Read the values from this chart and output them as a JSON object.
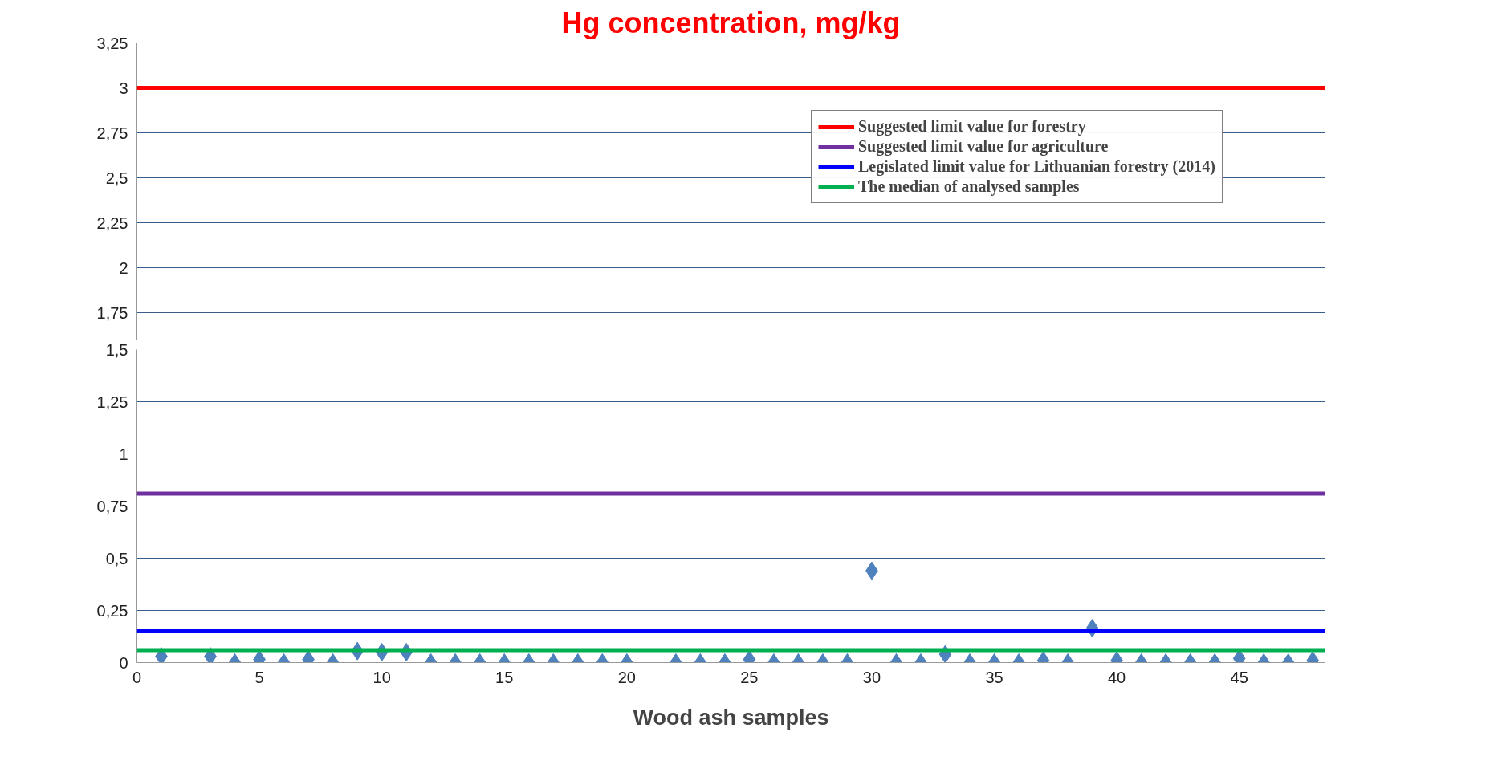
{
  "chart_data": [
    {
      "type": "scatter",
      "title": "Hg concentration, mg/kg",
      "xlim": [
        0,
        48.5
      ],
      "ylim": [
        1.6,
        3.25
      ],
      "yticks": [
        {
          "value": 1.75,
          "label": "1,75"
        },
        2,
        {
          "value": 2.25,
          "label": "2,25"
        },
        {
          "value": 2.5,
          "label": "2,5"
        },
        {
          "value": 2.75,
          "label": "2,75"
        },
        3,
        {
          "value": 3.25,
          "label": "3,25"
        }
      ],
      "tick_labels": "y",
      "grid": "y",
      "legend": "top right",
      "ref_lines": [
        {
          "axis": "y",
          "value": 3,
          "label": "Suggested limit value for forestry",
          "color": "#ff0000"
        }
      ]
    },
    {
      "type": "scatter",
      "xlabel": "Wood ash samples",
      "xlim": [
        0,
        48.5
      ],
      "ylim": [
        0,
        1.5
      ],
      "xticks": [
        0,
        5,
        10,
        15,
        20,
        25,
        30,
        35,
        40,
        45
      ],
      "yticks": [
        0,
        {
          "value": 0.25,
          "label": "0,25"
        },
        {
          "value": 0.5,
          "label": "0,5"
        },
        {
          "value": 0.75,
          "label": "0,75"
        },
        1,
        {
          "value": 1.25,
          "label": "1,25"
        },
        {
          "value": 1.5,
          "label": "1,5"
        }
      ],
      "grid": "y",
      "marker": "diamond",
      "legend": "top right",
      "series": [
        {
          "color": "#4f81bd",
          "x": [
            1,
            3,
            4,
            5,
            6,
            7,
            8,
            9,
            10,
            11,
            12,
            13,
            14,
            15,
            16,
            17,
            18,
            19,
            20,
            22,
            23,
            24,
            25,
            26,
            27,
            28,
            29,
            30,
            31,
            32,
            33,
            34,
            35,
            36,
            37,
            38,
            39,
            40,
            41,
            42,
            43,
            44,
            45,
            46,
            47,
            48
          ],
          "values": [
            0.03,
            0.03,
            0,
            0.015,
            0,
            0.015,
            0,
            0.055,
            0.05,
            0.05,
            0,
            0,
            0,
            0,
            0,
            0,
            0,
            0,
            0,
            0,
            0,
            0,
            0.015,
            0,
            0,
            0,
            0,
            0.44,
            0,
            0,
            0.04,
            0,
            0,
            0,
            0.01,
            0,
            0.165,
            0.01,
            0,
            0,
            0,
            0,
            0.02,
            0,
            0,
            0.01
          ]
        }
      ],
      "ref_lines": [
        {
          "axis": "y",
          "value": 0.81,
          "label": "Suggested limit value for agriculture",
          "color": "#7030a0"
        },
        {
          "axis": "y",
          "value": 0.15,
          "label": "Legislated limit value for Lithuanian forestry (2014)",
          "color": "#0000ff"
        },
        {
          "axis": "y",
          "value": 0.06,
          "label": "The median of analysed samples",
          "color": "#00b050"
        }
      ]
    }
  ]
}
